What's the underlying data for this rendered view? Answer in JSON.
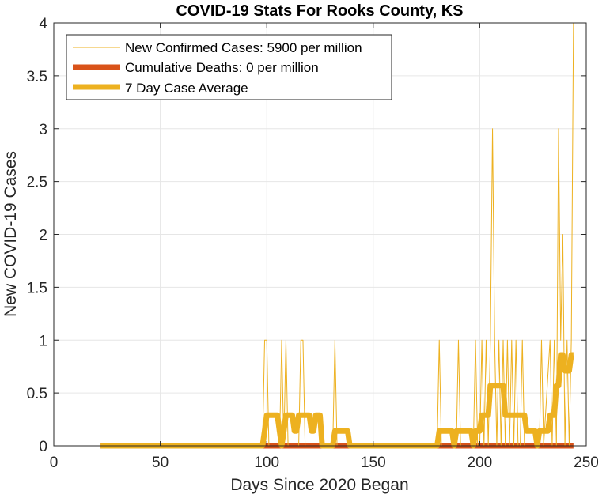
{
  "chart_data": {
    "type": "line",
    "title": "COVID-19 Stats For Rooks County, KS",
    "xlabel": "Days Since 2020 Began",
    "ylabel": "New COVID-19 Cases",
    "xlim": [
      0,
      250
    ],
    "ylim": [
      0,
      4
    ],
    "grid": true,
    "legend_position": "top-left",
    "x_ticks": [
      "0",
      "50",
      "100",
      "150",
      "200",
      "250"
    ],
    "y_ticks": [
      "0",
      "0.5",
      "1",
      "1.5",
      "2",
      "2.5",
      "3",
      "3.5",
      "4"
    ],
    "series": [
      {
        "name": "New Confirmed Cases: 5900 per million",
        "color": "#EDB120",
        "style": "thin",
        "points": [
          [
            22,
            0
          ],
          [
            98,
            0
          ],
          [
            99,
            1
          ],
          [
            100,
            1
          ],
          [
            101,
            0
          ],
          [
            106,
            0
          ],
          [
            107,
            1
          ],
          [
            108,
            0
          ],
          [
            109,
            1
          ],
          [
            110,
            0
          ],
          [
            115,
            0
          ],
          [
            116,
            1
          ],
          [
            117,
            1
          ],
          [
            118,
            0
          ],
          [
            131,
            0
          ],
          [
            132,
            1
          ],
          [
            133,
            0
          ],
          [
            180,
            0
          ],
          [
            181,
            1
          ],
          [
            182,
            0
          ],
          [
            189,
            0
          ],
          [
            190,
            1
          ],
          [
            191,
            0
          ],
          [
            197,
            0
          ],
          [
            198,
            1
          ],
          [
            199,
            0
          ],
          [
            200,
            0
          ],
          [
            201,
            1
          ],
          [
            202,
            0
          ],
          [
            203,
            1
          ],
          [
            204,
            0
          ],
          [
            205,
            1
          ],
          [
            206,
            3
          ],
          [
            207,
            1
          ],
          [
            208,
            0
          ],
          [
            209,
            1
          ],
          [
            210,
            0
          ],
          [
            211,
            1
          ],
          [
            212,
            0
          ],
          [
            213,
            1
          ],
          [
            214,
            0
          ],
          [
            215,
            1
          ],
          [
            216,
            0
          ],
          [
            217,
            1
          ],
          [
            218,
            0
          ],
          [
            219,
            0
          ],
          [
            220,
            1
          ],
          [
            221,
            0
          ],
          [
            228,
            0
          ],
          [
            229,
            1
          ],
          [
            230,
            0
          ],
          [
            233,
            1
          ],
          [
            234,
            0
          ],
          [
            235,
            1
          ],
          [
            236,
            0
          ],
          [
            237,
            3
          ],
          [
            238,
            1
          ],
          [
            239,
            2
          ],
          [
            240,
            0
          ],
          [
            241,
            1
          ],
          [
            242,
            0
          ],
          [
            243,
            1
          ],
          [
            244,
            4
          ]
        ]
      },
      {
        "name": "Cumulative Deaths: 0 per million",
        "color": "#D95319",
        "style": "thick",
        "points": [
          [
            22,
            0
          ],
          [
            244,
            0
          ]
        ]
      },
      {
        "name": "7 Day Case Average",
        "color": "#EDB120",
        "style": "thick",
        "points": [
          [
            22,
            0
          ],
          [
            98,
            0
          ],
          [
            99,
            0.14
          ],
          [
            100,
            0.29
          ],
          [
            105,
            0.29
          ],
          [
            106,
            0.14
          ],
          [
            107,
            0
          ],
          [
            108,
            0.14
          ],
          [
            109,
            0.29
          ],
          [
            112,
            0.29
          ],
          [
            113,
            0.14
          ],
          [
            114,
            0.14
          ],
          [
            115,
            0.29
          ],
          [
            120,
            0.29
          ],
          [
            121,
            0.14
          ],
          [
            122,
            0.14
          ],
          [
            123,
            0.29
          ],
          [
            125,
            0.29
          ],
          [
            126,
            0
          ],
          [
            131,
            0
          ],
          [
            132,
            0.14
          ],
          [
            138,
            0.14
          ],
          [
            139,
            0
          ],
          [
            180,
            0
          ],
          [
            181,
            0.14
          ],
          [
            187,
            0.14
          ],
          [
            188,
            0
          ],
          [
            189,
            0.14
          ],
          [
            191,
            0.14
          ],
          [
            192,
            0.14
          ],
          [
            196,
            0.14
          ],
          [
            197,
            0
          ],
          [
            198,
            0.14
          ],
          [
            200,
            0.14
          ],
          [
            201,
            0.29
          ],
          [
            204,
            0.29
          ],
          [
            205,
            0.57
          ],
          [
            211,
            0.57
          ],
          [
            212,
            0.29
          ],
          [
            218,
            0.29
          ],
          [
            219,
            0.29
          ],
          [
            221,
            0.29
          ],
          [
            222,
            0.14
          ],
          [
            226,
            0.14
          ],
          [
            227,
            0
          ],
          [
            228,
            0.14
          ],
          [
            232,
            0.14
          ],
          [
            233,
            0.29
          ],
          [
            235,
            0.29
          ],
          [
            236,
            0.57
          ],
          [
            237,
            0.57
          ],
          [
            238,
            0.86
          ],
          [
            239,
            0.86
          ],
          [
            240,
            0.71
          ],
          [
            242,
            0.71
          ],
          [
            243,
            0.86
          ],
          [
            244,
            0.86
          ]
        ]
      }
    ]
  }
}
